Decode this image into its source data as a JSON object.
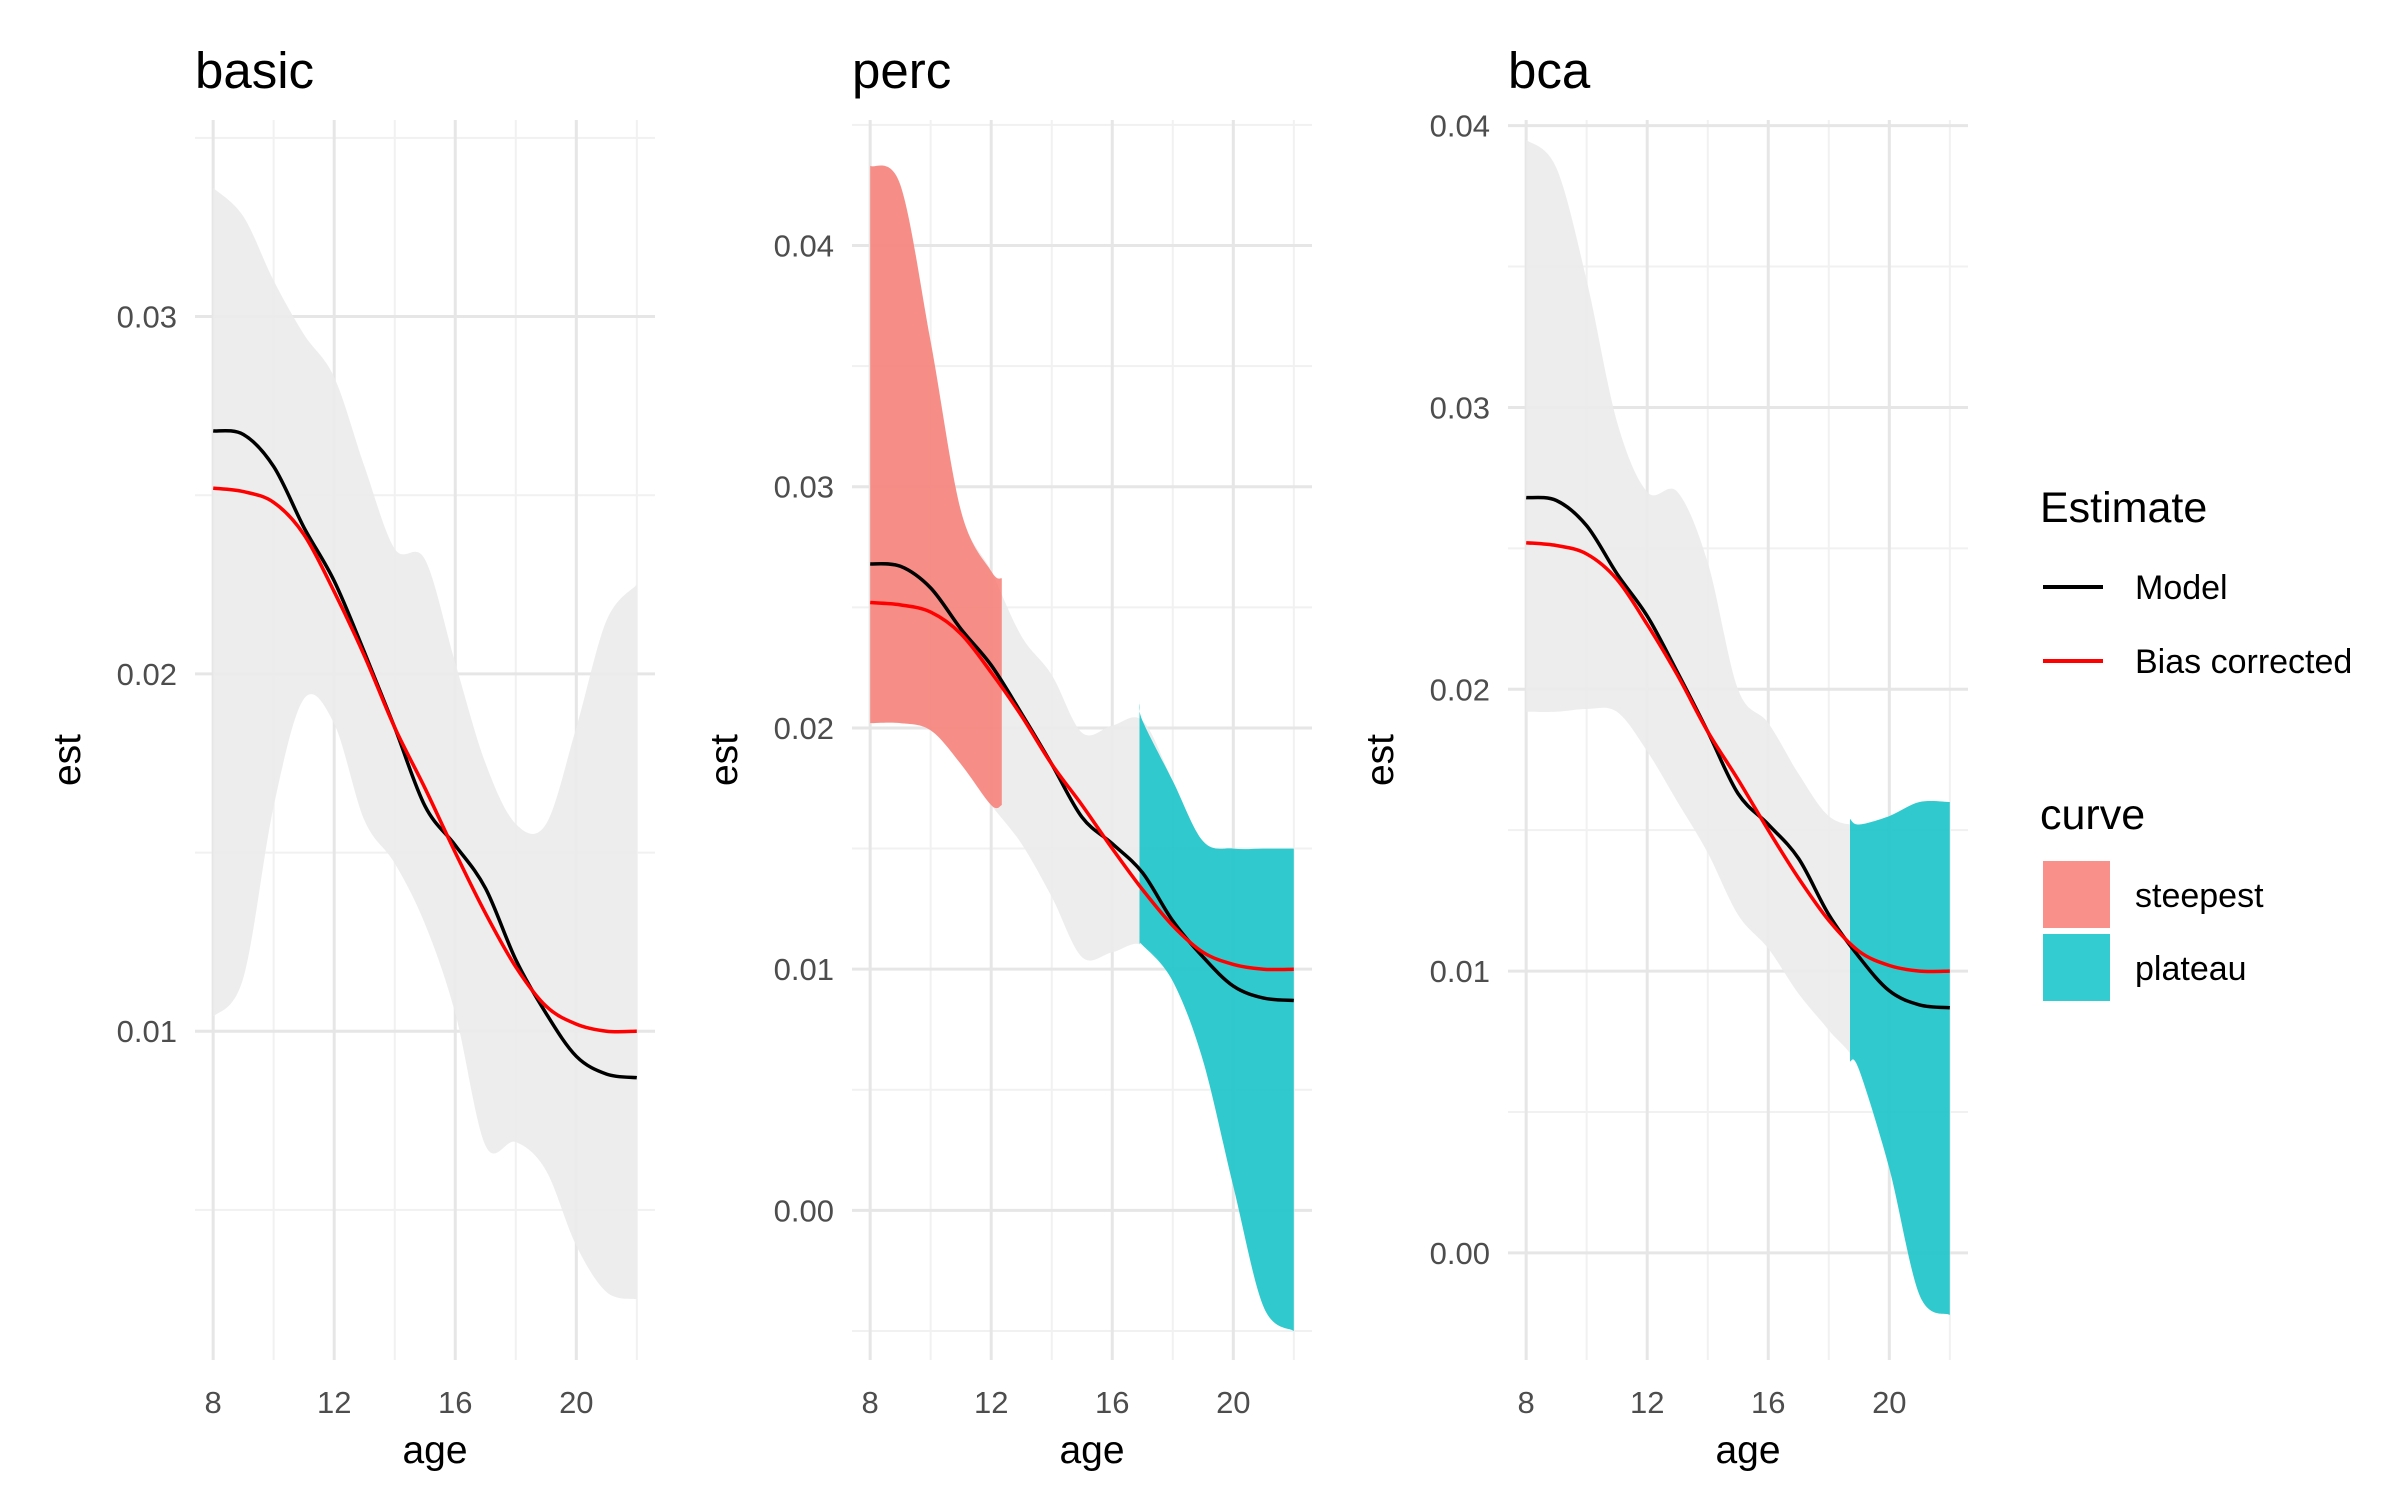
{
  "chart_data": {
    "type": "line",
    "panels": [
      {
        "title": "basic",
        "xlabel": "age",
        "ylabel": "est",
        "xlim": [
          7.4,
          22.6
        ],
        "ylim": [
          0.0008,
          0.0355
        ],
        "x_ticks": [
          8,
          12,
          16,
          20
        ],
        "x_tick_labels": [
          "8",
          "12",
          "16",
          "20"
        ],
        "y_ticks": [
          0.01,
          0.02,
          0.03
        ],
        "y_tick_labels": [
          "0.01",
          "0.02",
          "0.03"
        ],
        "y_minor": [
          0.005,
          0.015,
          0.025,
          0.035
        ],
        "ci_ages": [
          8,
          9,
          10,
          11,
          12,
          13,
          14,
          15,
          16,
          17,
          18,
          19,
          20,
          21,
          22
        ],
        "ci_upper": [
          0.0336,
          0.0328,
          0.031,
          0.0295,
          0.0283,
          0.0258,
          0.0235,
          0.0232,
          0.0203,
          0.0175,
          0.0158,
          0.0158,
          0.0185,
          0.0215,
          0.0225
        ],
        "ci_lower": [
          0.0104,
          0.0115,
          0.0163,
          0.0193,
          0.0186,
          0.0159,
          0.0147,
          0.013,
          0.0105,
          0.0068,
          0.0069,
          0.0061,
          0.004,
          0.0027,
          0.0025
        ],
        "highlight_bands": [],
        "series": [
          {
            "name": "Model",
            "color": "#000000",
            "x": [
              8,
              9,
              10,
              11,
              12,
              13,
              14,
              15,
              16,
              17,
              18,
              19,
              20,
              21,
              22
            ],
            "y": [
              0.0268,
              0.0267,
              0.0258,
              0.0241,
              0.0226,
              0.0206,
              0.0185,
              0.0163,
              0.0152,
              0.014,
              0.012,
              0.0105,
              0.0093,
              0.0088,
              0.0087
            ]
          },
          {
            "name": "Bias corrected",
            "color": "#ff0000",
            "x": [
              8,
              9,
              10,
              11,
              12,
              13,
              14,
              15,
              16,
              17,
              18,
              19,
              20,
              21,
              22
            ],
            "y": [
              0.0252,
              0.0251,
              0.0248,
              0.0239,
              0.0223,
              0.0205,
              0.0185,
              0.0168,
              0.015,
              0.0133,
              0.0118,
              0.0107,
              0.0102,
              0.01,
              0.01
            ]
          }
        ]
      },
      {
        "title": "perc",
        "xlabel": "age",
        "ylabel": "est",
        "xlim": [
          7.4,
          22.6
        ],
        "ylim": [
          -0.0062,
          0.0452
        ],
        "x_ticks": [
          8,
          12,
          16,
          20
        ],
        "x_tick_labels": [
          "8",
          "12",
          "16",
          "20"
        ],
        "y_ticks": [
          0.0,
          0.01,
          0.02,
          0.03,
          0.04
        ],
        "y_tick_labels": [
          "0.00",
          "0.01",
          "0.02",
          "0.03",
          "0.04"
        ],
        "y_minor": [
          -0.005,
          0.005,
          0.015,
          0.025,
          0.035,
          0.045
        ],
        "ci_ages": [
          8,
          9,
          10,
          11,
          12,
          13,
          14,
          15,
          16,
          17,
          18,
          19,
          20,
          21,
          22
        ],
        "ci_upper": [
          0.0433,
          0.0425,
          0.036,
          0.029,
          0.0265,
          0.0238,
          0.0222,
          0.0198,
          0.0201,
          0.0203,
          0.0178,
          0.0153,
          0.015,
          0.015,
          0.015
        ],
        "ci_lower": [
          0.0202,
          0.0202,
          0.0199,
          0.0185,
          0.0168,
          0.0152,
          0.013,
          0.0105,
          0.0107,
          0.011,
          0.0095,
          0.0062,
          0.001,
          -0.004,
          -0.005
        ],
        "highlight_bands": [
          {
            "curve": "steepest",
            "color": "#f8766d",
            "x": [
              8,
              9,
              10,
              11,
              12,
              12.35
            ],
            "upper": [
              0.0433,
              0.0425,
              0.036,
              0.029,
              0.0265,
              0.0262
            ],
            "lower": [
              0.0202,
              0.0202,
              0.0199,
              0.0185,
              0.0168,
              0.0168
            ]
          },
          {
            "curve": "plateau",
            "color": "#00bfc4",
            "x": [
              16.9,
              17,
              18,
              19,
              20,
              21,
              22
            ],
            "upper": [
              0.0211,
              0.0203,
              0.0178,
              0.0153,
              0.015,
              0.015,
              0.015
            ],
            "lower": [
              0.011,
              0.011,
              0.0095,
              0.0062,
              0.001,
              -0.004,
              -0.005
            ]
          }
        ],
        "series": [
          {
            "name": "Model",
            "color": "#000000",
            "x": [
              8,
              9,
              10,
              11,
              12,
              13,
              14,
              15,
              16,
              17,
              18,
              19,
              20,
              21,
              22
            ],
            "y": [
              0.0268,
              0.0267,
              0.0258,
              0.0241,
              0.0226,
              0.0206,
              0.0185,
              0.0163,
              0.0152,
              0.014,
              0.012,
              0.0105,
              0.0093,
              0.0088,
              0.0087
            ]
          },
          {
            "name": "Bias corrected",
            "color": "#ff0000",
            "x": [
              8,
              9,
              10,
              11,
              12,
              13,
              14,
              15,
              16,
              17,
              18,
              19,
              20,
              21,
              22
            ],
            "y": [
              0.0252,
              0.0251,
              0.0248,
              0.0239,
              0.0223,
              0.0205,
              0.0185,
              0.0168,
              0.015,
              0.0133,
              0.0118,
              0.0107,
              0.0102,
              0.01,
              0.01
            ]
          }
        ]
      },
      {
        "title": "bca",
        "xlabel": "age",
        "ylabel": "est",
        "xlim": [
          7.4,
          22.6
        ],
        "ylim": [
          -0.0038,
          0.0402
        ],
        "x_ticks": [
          8,
          12,
          16,
          20
        ],
        "x_tick_labels": [
          "8",
          "12",
          "16",
          "20"
        ],
        "y_ticks": [
          0.0,
          0.01,
          0.02,
          0.03,
          0.04
        ],
        "y_tick_labels": [
          "0.00",
          "0.01",
          "0.02",
          "0.03",
          "0.04"
        ],
        "y_minor": [
          0.005,
          0.015,
          0.025,
          0.035
        ],
        "ci_ages": [
          8,
          9,
          10,
          11,
          12,
          13,
          14,
          15,
          16,
          17,
          18,
          19,
          20,
          21,
          22
        ],
        "ci_upper": [
          0.0395,
          0.0385,
          0.0345,
          0.0295,
          0.027,
          0.027,
          0.0245,
          0.02,
          0.0188,
          0.017,
          0.0155,
          0.0152,
          0.0155,
          0.016,
          0.016
        ],
        "ci_lower": [
          0.0192,
          0.0192,
          0.0193,
          0.0192,
          0.0178,
          0.016,
          0.0142,
          0.012,
          0.0108,
          0.0092,
          0.0079,
          0.0065,
          0.003,
          -0.0015,
          -0.0022
        ],
        "highlight_bands": [
          {
            "curve": "plateau",
            "color": "#00bfc4",
            "x": [
              18.7,
              19,
              20,
              21,
              22
            ],
            "upper": [
              0.0154,
              0.0152,
              0.0155,
              0.016,
              0.016
            ],
            "lower": [
              0.0068,
              0.0065,
              0.003,
              -0.0015,
              -0.0022
            ]
          }
        ],
        "series": [
          {
            "name": "Model",
            "color": "#000000",
            "x": [
              8,
              9,
              10,
              11,
              12,
              13,
              14,
              15,
              16,
              17,
              18,
              19,
              20,
              21,
              22
            ],
            "y": [
              0.0268,
              0.0267,
              0.0258,
              0.0241,
              0.0226,
              0.0206,
              0.0185,
              0.0163,
              0.0152,
              0.014,
              0.012,
              0.0105,
              0.0093,
              0.0088,
              0.0087
            ]
          },
          {
            "name": "Bias corrected",
            "color": "#ff0000",
            "x": [
              8,
              9,
              10,
              11,
              12,
              13,
              14,
              15,
              16,
              17,
              18,
              19,
              20,
              21,
              22
            ],
            "y": [
              0.0252,
              0.0251,
              0.0248,
              0.0239,
              0.0223,
              0.0205,
              0.0185,
              0.0168,
              0.015,
              0.0133,
              0.0118,
              0.0107,
              0.0102,
              0.01,
              0.01
            ]
          }
        ]
      }
    ],
    "legend": {
      "placement": "right",
      "estimate": {
        "title": "Estimate",
        "items": [
          {
            "label": "Model",
            "color": "#000000"
          },
          {
            "label": "Bias corrected",
            "color": "#ff0000"
          }
        ]
      },
      "curve": {
        "title": "curve",
        "items": [
          {
            "label": "steepest",
            "color": "#f8766d"
          },
          {
            "label": "plateau",
            "color": "#00bfc4"
          }
        ]
      }
    },
    "colors": {
      "ci_band": "#ebebeb",
      "grid_major": "#e6e6e6",
      "grid_minor": "#f1f1f1"
    },
    "grid": true
  }
}
